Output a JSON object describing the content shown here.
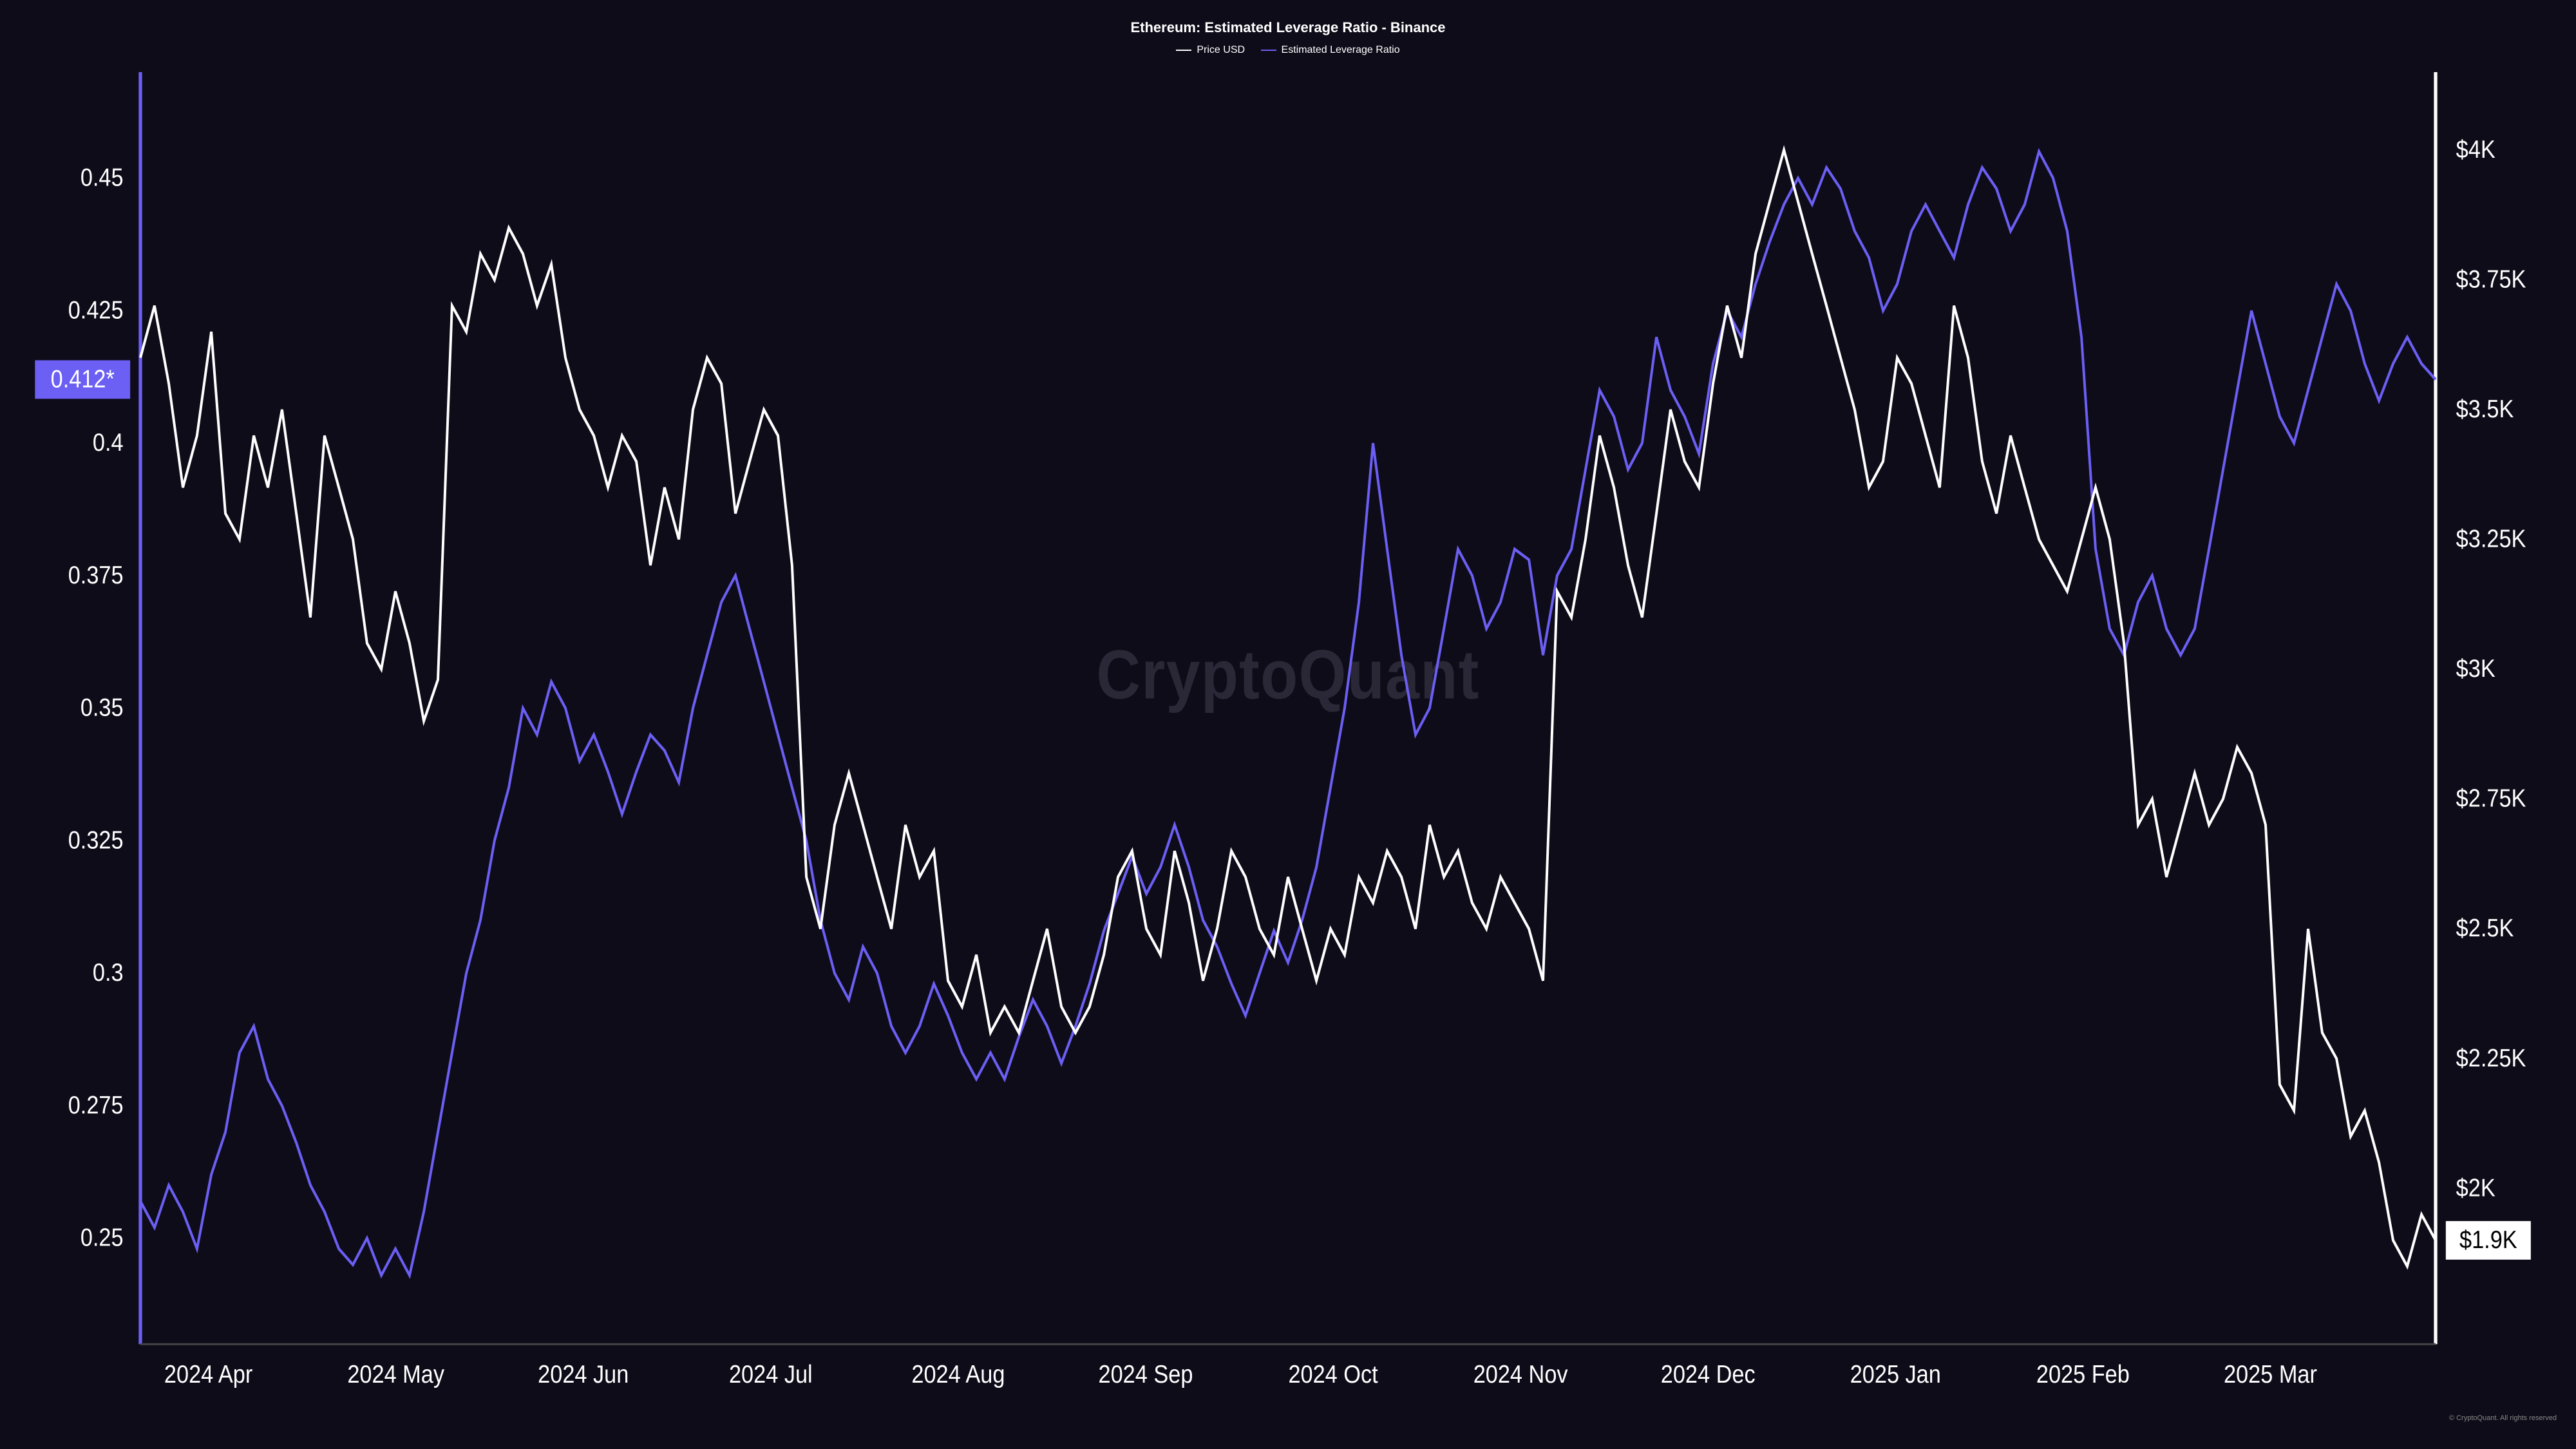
{
  "title": "Ethereum: Estimated Leverage Ratio - Binance",
  "legend": {
    "series1": {
      "label": "Price USD",
      "color": "#ffffff"
    },
    "series2": {
      "label": "Estimated Leverage Ratio",
      "color": "#6b5ff4"
    }
  },
  "watermark": "CryptoQuant",
  "footer": "© CryptoQuant. All rights reserved",
  "chart": {
    "background_color": "#0f0c19",
    "axis_color": "#6b5ff4",
    "axis_color_right": "#ffffff",
    "text_color": "#ffffff",
    "line_width": 1.5,
    "left_axis": {
      "min": 0.23,
      "max": 0.47,
      "ticks": [
        0.25,
        0.275,
        0.3,
        0.325,
        0.35,
        0.375,
        0.4,
        0.425,
        0.45
      ],
      "current_value": 0.412,
      "current_label": "0.412*",
      "badge_bg": "#6b5ff4",
      "badge_text": "#ffffff"
    },
    "right_axis": {
      "min": 1700,
      "max": 4150,
      "ticks": [
        {
          "v": 2000,
          "l": "$2K"
        },
        {
          "v": 2250,
          "l": "$2.25K"
        },
        {
          "v": 2500,
          "l": "$2.5K"
        },
        {
          "v": 2750,
          "l": "$2.75K"
        },
        {
          "v": 3000,
          "l": "$3K"
        },
        {
          "v": 3250,
          "l": "$3.25K"
        },
        {
          "v": 3500,
          "l": "$3.5K"
        },
        {
          "v": 3750,
          "l": "$3.75K"
        },
        {
          "v": 4000,
          "l": "$4K"
        }
      ],
      "current_value": 1900,
      "current_label": "$1.9K",
      "badge_bg": "#ffffff",
      "badge_text": "#000000"
    },
    "x_axis": {
      "labels": [
        "2024 Apr",
        "2024 May",
        "2024 Jun",
        "2024 Jul",
        "2024 Aug",
        "2024 Sep",
        "2024 Oct",
        "2024 Nov",
        "2024 Dec",
        "2025 Jan",
        "2025 Feb",
        "2025 Mar"
      ]
    },
    "price_series": {
      "color": "#ffffff",
      "data": [
        3600,
        3700,
        3550,
        3350,
        3450,
        3650,
        3300,
        3250,
        3450,
        3350,
        3500,
        3300,
        3100,
        3450,
        3350,
        3250,
        3050,
        3000,
        3150,
        3050,
        2900,
        2980,
        3700,
        3650,
        3800,
        3750,
        3850,
        3800,
        3700,
        3780,
        3600,
        3500,
        3450,
        3350,
        3450,
        3400,
        3200,
        3350,
        3250,
        3500,
        3600,
        3550,
        3300,
        3400,
        3500,
        3450,
        3200,
        2600,
        2500,
        2700,
        2800,
        2700,
        2600,
        2500,
        2700,
        2600,
        2650,
        2400,
        2350,
        2450,
        2300,
        2350,
        2300,
        2400,
        2500,
        2350,
        2300,
        2350,
        2450,
        2600,
        2650,
        2500,
        2450,
        2650,
        2550,
        2400,
        2500,
        2650,
        2600,
        2500,
        2450,
        2600,
        2500,
        2400,
        2500,
        2450,
        2600,
        2550,
        2650,
        2600,
        2500,
        2700,
        2600,
        2650,
        2550,
        2500,
        2600,
        2550,
        2500,
        2400,
        3150,
        3100,
        3250,
        3450,
        3350,
        3200,
        3100,
        3300,
        3500,
        3400,
        3350,
        3550,
        3700,
        3600,
        3800,
        3900,
        4000,
        3900,
        3800,
        3700,
        3600,
        3500,
        3350,
        3400,
        3600,
        3550,
        3450,
        3350,
        3700,
        3600,
        3400,
        3300,
        3450,
        3350,
        3250,
        3200,
        3150,
        3250,
        3350,
        3250,
        3050,
        2700,
        2750,
        2600,
        2700,
        2800,
        2700,
        2750,
        2850,
        2800,
        2700,
        2200,
        2150,
        2500,
        2300,
        2250,
        2100,
        2150,
        2050,
        1900,
        1850,
        1950,
        1900
      ]
    },
    "leverage_series": {
      "color": "#6b5ff4",
      "data": [
        0.257,
        0.252,
        0.26,
        0.255,
        0.248,
        0.262,
        0.27,
        0.285,
        0.29,
        0.28,
        0.275,
        0.268,
        0.26,
        0.255,
        0.248,
        0.245,
        0.25,
        0.243,
        0.248,
        0.243,
        0.255,
        0.27,
        0.285,
        0.3,
        0.31,
        0.325,
        0.335,
        0.35,
        0.345,
        0.355,
        0.35,
        0.34,
        0.345,
        0.338,
        0.33,
        0.338,
        0.345,
        0.342,
        0.336,
        0.35,
        0.36,
        0.37,
        0.375,
        0.365,
        0.355,
        0.345,
        0.335,
        0.325,
        0.31,
        0.3,
        0.295,
        0.305,
        0.3,
        0.29,
        0.285,
        0.29,
        0.298,
        0.292,
        0.285,
        0.28,
        0.285,
        0.28,
        0.288,
        0.295,
        0.29,
        0.283,
        0.29,
        0.298,
        0.308,
        0.315,
        0.322,
        0.315,
        0.32,
        0.328,
        0.32,
        0.31,
        0.305,
        0.298,
        0.292,
        0.3,
        0.308,
        0.302,
        0.31,
        0.32,
        0.335,
        0.35,
        0.37,
        0.4,
        0.38,
        0.36,
        0.345,
        0.35,
        0.365,
        0.38,
        0.375,
        0.365,
        0.37,
        0.38,
        0.378,
        0.36,
        0.375,
        0.38,
        0.395,
        0.41,
        0.405,
        0.395,
        0.4,
        0.42,
        0.41,
        0.405,
        0.398,
        0.415,
        0.425,
        0.42,
        0.43,
        0.438,
        0.445,
        0.45,
        0.445,
        0.452,
        0.448,
        0.44,
        0.435,
        0.425,
        0.43,
        0.44,
        0.445,
        0.44,
        0.435,
        0.445,
        0.452,
        0.448,
        0.44,
        0.445,
        0.455,
        0.45,
        0.44,
        0.42,
        0.38,
        0.365,
        0.36,
        0.37,
        0.375,
        0.365,
        0.36,
        0.365,
        0.38,
        0.395,
        0.41,
        0.425,
        0.415,
        0.405,
        0.4,
        0.41,
        0.42,
        0.43,
        0.425,
        0.415,
        0.408,
        0.415,
        0.42,
        0.415,
        0.412
      ]
    }
  }
}
